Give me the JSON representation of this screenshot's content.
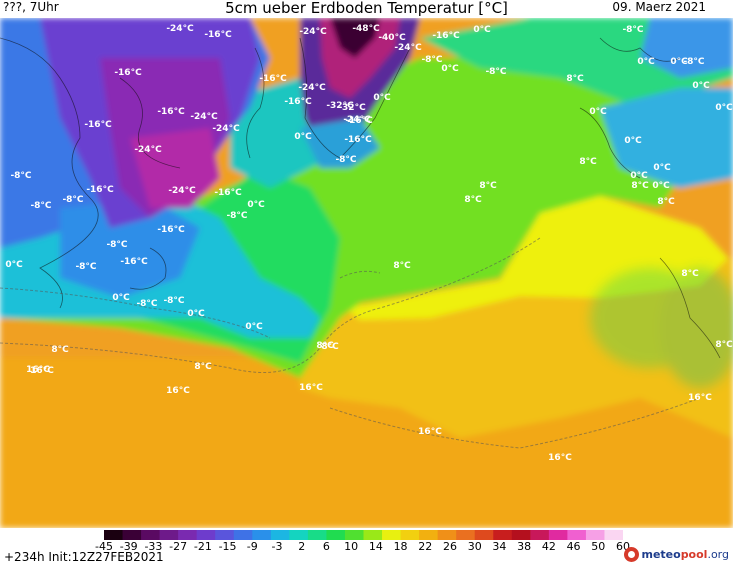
{
  "header": {
    "left": "???, 7Uhr",
    "title": "5cm ueber Erdboden Temperatur [°C]",
    "date": "09. Maerz 2021"
  },
  "map_labels": [
    "-48°C",
    "-40°C",
    "-32°C",
    "-32°C",
    "-24°C",
    "-24°C",
    "-24°C",
    "-24°C",
    "-24°C",
    "-24°C",
    "-24°C",
    "-24°C",
    "-24°C",
    "-16°C",
    "-16°C",
    "-16°C",
    "-16°C",
    "-16°C",
    "-16°C",
    "-16°C",
    "-16°C",
    "-16°C",
    "-16°C",
    "-16°C",
    "-16°C",
    "-16°C",
    "-8°C",
    "-8°C",
    "-8°C",
    "-8°C",
    "-8°C",
    "-8°C",
    "-8°C",
    "-8°C",
    "-8°C",
    "-8°C",
    "-8°C",
    "-8°C",
    "-8°C",
    "0°C",
    "0°C",
    "0°C",
    "0°C",
    "0°C",
    "0°C",
    "0°C",
    "0°C",
    "0°C",
    "0°C",
    "0°C",
    "0°C",
    "0°C",
    "0°C",
    "0°C",
    "0°C",
    "0°C",
    "0°C",
    "8°C",
    "8°C",
    "8°C",
    "8°C",
    "8°C",
    "8°C",
    "8°C",
    "8°C",
    "8°C",
    "8°C",
    "8°C",
    "8°C",
    "8°C",
    "16°C",
    "16°C",
    "16°C",
    "16°C",
    "16°C",
    "16°C",
    "16°C"
  ],
  "legend": {
    "ticks": [
      "-45",
      "-39",
      "-33",
      "-27",
      "-21",
      "-15",
      "-9",
      "-3",
      "2",
      "6",
      "10",
      "14",
      "18",
      "22",
      "26",
      "30",
      "34",
      "38",
      "42",
      "46",
      "50",
      "60"
    ],
    "colors": [
      "#1a0010",
      "#3a0036",
      "#5a0a62",
      "#6e1a8a",
      "#7a2ab0",
      "#6e3ccc",
      "#5a55dc",
      "#3f72e6",
      "#2a90ea",
      "#1cb6e2",
      "#14d4c0",
      "#18dc88",
      "#20dc50",
      "#50e030",
      "#9ae818",
      "#e8f010",
      "#f2d010",
      "#f2b010",
      "#f09018",
      "#ea7020",
      "#de4a1e",
      "#c81e1e",
      "#b4101e",
      "#c8185a",
      "#e02aa0",
      "#f060d0",
      "#f6a0e6",
      "#fad6f2"
    ],
    "run_info": "+234h Init:12Z27FEB2021"
  },
  "logo": {
    "part1": "meteo",
    "part2": "pool",
    "part3": ".org"
  }
}
